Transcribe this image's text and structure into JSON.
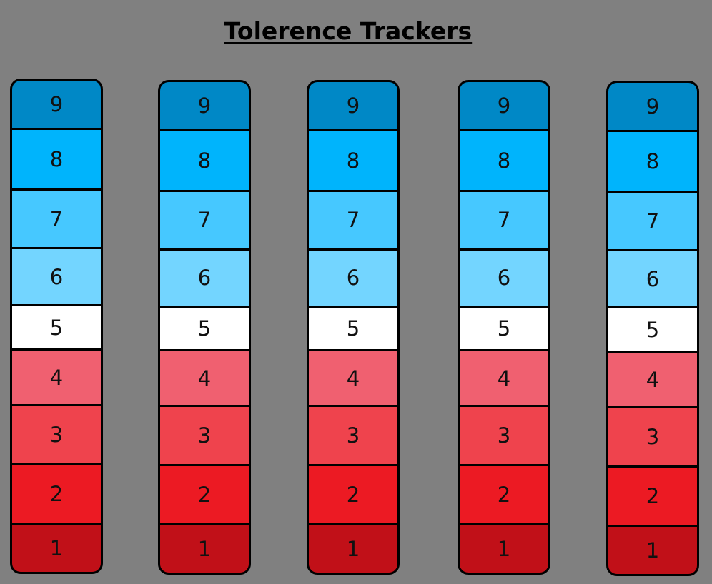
{
  "title": "Tolerence Trackers",
  "levels": [
    {
      "label": "9",
      "color": "#0088C6"
    },
    {
      "label": "8",
      "color": "#00B4FC"
    },
    {
      "label": "7",
      "color": "#46C8FF"
    },
    {
      "label": "6",
      "color": "#73D5FF"
    },
    {
      "label": "5",
      "color": "#FFFFFF"
    },
    {
      "label": "4",
      "color": "#F06070"
    },
    {
      "label": "3",
      "color": "#EF434D"
    },
    {
      "label": "2",
      "color": "#EC1A23"
    },
    {
      "label": "1",
      "color": "#C11018"
    }
  ],
  "trackers": [
    {
      "id": "tracker-1"
    },
    {
      "id": "tracker-2"
    },
    {
      "id": "tracker-3"
    },
    {
      "id": "tracker-4"
    },
    {
      "id": "tracker-5"
    }
  ]
}
